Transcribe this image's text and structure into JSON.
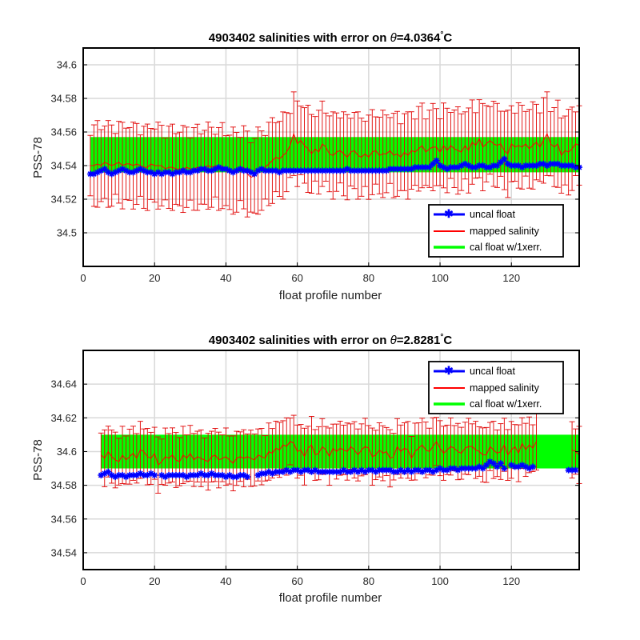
{
  "chart_data": [
    {
      "type": "line",
      "title_prefix": "4903402 salinities with error on ",
      "title_theta": "θ",
      "title_value": "=4.0364",
      "title_degree": "°",
      "title_unit": "C",
      "xlabel": "float profile number",
      "ylabel": "PSS-78",
      "xlim": [
        0,
        139
      ],
      "ylim": [
        34.48,
        34.61
      ],
      "xticks": [
        0,
        20,
        40,
        60,
        80,
        100,
        120
      ],
      "yticks": [
        "34.5",
        "34.52",
        "34.54",
        "34.56",
        "34.58",
        "34.6"
      ],
      "grid": true,
      "legend_position": "bottom-right",
      "legend": [
        "uncal float",
        "mapped salinity",
        "cal float w/1xerr."
      ],
      "series": [
        {
          "name": "uncal float",
          "color": "#0000ff",
          "x_start": 2,
          "x_end": 139,
          "values": [
            34.535,
            34.535,
            34.536,
            34.537,
            34.538,
            34.536,
            34.535,
            34.536,
            34.537,
            34.538,
            34.537,
            34.536,
            34.536,
            34.537,
            34.538,
            34.537,
            34.536,
            34.536,
            34.535,
            34.536,
            34.535,
            34.536,
            34.536,
            34.535,
            34.536,
            34.536,
            34.537,
            34.536,
            34.536,
            34.537,
            34.537,
            34.538,
            34.538,
            34.537,
            34.537,
            34.538,
            34.539,
            34.538,
            34.538,
            34.537,
            34.536,
            34.537,
            34.538,
            34.537,
            34.537,
            34.536,
            34.535,
            34.537,
            34.538,
            34.537,
            34.537,
            34.537,
            34.537,
            34.536,
            34.537,
            34.537,
            34.537,
            34.537,
            34.537,
            34.537,
            34.537,
            34.537,
            34.537,
            34.537,
            34.537,
            34.537,
            34.537,
            34.537,
            34.537,
            34.537,
            34.537,
            34.537,
            34.538,
            34.537,
            34.537,
            34.537,
            34.537,
            34.537,
            34.537,
            34.537,
            34.537,
            34.537,
            34.537,
            34.537,
            34.538,
            34.538,
            34.538,
            34.538,
            34.538,
            34.538,
            34.538,
            34.539,
            34.539,
            34.539,
            34.539,
            34.539,
            34.541,
            34.543,
            34.54,
            34.539,
            34.538,
            34.539,
            34.539,
            34.539,
            34.54,
            34.541,
            34.54,
            34.539,
            34.539,
            34.54,
            34.54,
            34.539,
            34.539,
            34.54,
            34.54,
            34.542,
            34.544,
            34.541,
            34.54,
            34.54,
            34.54,
            34.539,
            34.54,
            34.54,
            34.54,
            34.54,
            34.541,
            34.541,
            34.54,
            34.541,
            34.541,
            34.541,
            34.54,
            34.54,
            34.54,
            34.54,
            34.539,
            34.539
          ]
        },
        {
          "name": "mapped salinity",
          "color": "#ff0000",
          "x_start": 2,
          "x_end": 139,
          "values": [
            34.54,
            34.54,
            34.541,
            34.54,
            34.542,
            34.541,
            34.54,
            34.541,
            34.542,
            34.54,
            34.541,
            34.541,
            34.54,
            34.541,
            34.54,
            34.539,
            34.539,
            34.541,
            34.54,
            34.54,
            34.54,
            34.538,
            34.539,
            34.539,
            34.538,
            34.538,
            34.538,
            34.539,
            34.538,
            34.538,
            34.539,
            34.538,
            34.539,
            34.54,
            34.539,
            34.54,
            34.538,
            34.54,
            34.537,
            34.536,
            34.537,
            34.536,
            34.538,
            34.539,
            34.535,
            34.533,
            34.534,
            34.537,
            34.537,
            34.539,
            34.541,
            34.543,
            34.545,
            34.544,
            34.546,
            34.548,
            34.552,
            34.559,
            34.553,
            34.555,
            34.552,
            34.55,
            34.547,
            34.55,
            34.548,
            34.553,
            34.551,
            34.547,
            34.546,
            34.548,
            34.549,
            34.547,
            34.545,
            34.548,
            34.549,
            34.546,
            34.545,
            34.547,
            34.545,
            34.548,
            34.549,
            34.546,
            34.547,
            34.547,
            34.549,
            34.546,
            34.547,
            34.545,
            34.548,
            34.546,
            34.549,
            34.548,
            34.55,
            34.552,
            34.548,
            34.55,
            34.551,
            34.551,
            34.548,
            34.552,
            34.549,
            34.552,
            34.55,
            34.549,
            34.548,
            34.552,
            34.549,
            34.554,
            34.552,
            34.556,
            34.551,
            34.553,
            34.555,
            34.553,
            34.552,
            34.553,
            34.549,
            34.547,
            34.553,
            34.551,
            34.552,
            34.551,
            34.553,
            34.55,
            34.552,
            34.554,
            34.551,
            34.555,
            34.559,
            34.553,
            34.551,
            34.553,
            34.546,
            34.549,
            34.548,
            34.55,
            34.553,
            34.552
          ]
        },
        {
          "name": "cal float w/1xerr.",
          "color": "#00ff00",
          "x_start": 2,
          "x_end": 139,
          "lower": 34.536,
          "upper": 34.557
        }
      ]
    },
    {
      "type": "line",
      "title_prefix": "4903402 salinities with error on ",
      "title_theta": "θ",
      "title_value": "=2.8281",
      "title_degree": "°",
      "title_unit": "C",
      "xlabel": "float profile number",
      "ylabel": "PSS-78",
      "xlim": [
        0,
        139
      ],
      "ylim": [
        34.53,
        34.66
      ],
      "xticks": [
        0,
        20,
        40,
        60,
        80,
        100,
        120
      ],
      "yticks": [
        "34.54",
        "34.56",
        "34.58",
        "34.6",
        "34.62",
        "34.64"
      ],
      "grid": true,
      "legend_position": "top-right",
      "legend": [
        "uncal float",
        "mapped salinity",
        "cal float w/1xerr."
      ],
      "series": [
        {
          "name": "uncal float",
          "color": "#0000ff",
          "x_start": 5,
          "x_end": 139,
          "values": [
            34.586,
            34.587,
            34.588,
            34.586,
            34.585,
            34.586,
            34.586,
            34.585,
            34.586,
            34.586,
            34.586,
            34.587,
            34.586,
            34.586,
            34.587,
            34.586,
            null,
            34.586,
            34.585,
            34.586,
            34.586,
            34.586,
            34.586,
            34.586,
            34.585,
            34.586,
            34.586,
            34.586,
            34.587,
            34.586,
            34.586,
            34.587,
            34.586,
            34.586,
            34.586,
            34.585,
            34.586,
            34.585,
            34.585,
            34.586,
            34.586,
            34.585,
            null,
            null,
            34.586,
            34.587,
            34.587,
            34.588,
            34.587,
            34.588,
            34.588,
            34.588,
            34.589,
            34.588,
            34.589,
            34.589,
            34.588,
            34.589,
            34.589,
            34.588,
            34.589,
            34.588,
            34.588,
            34.588,
            34.588,
            34.588,
            34.588,
            34.588,
            34.589,
            34.588,
            34.588,
            34.589,
            34.588,
            34.589,
            34.588,
            34.589,
            34.589,
            34.588,
            34.589,
            34.589,
            34.589,
            34.589,
            34.588,
            34.588,
            34.589,
            34.588,
            34.589,
            34.588,
            34.589,
            34.589,
            34.588,
            34.589,
            34.589,
            34.588,
            34.589,
            34.59,
            34.589,
            34.589,
            34.59,
            34.59,
            34.589,
            34.59,
            34.59,
            34.59,
            34.59,
            34.59,
            34.591,
            34.59,
            34.592,
            34.594,
            34.593,
            34.591,
            34.593,
            34.59,
            null,
            34.592,
            34.591,
            34.591,
            34.592,
            34.591,
            34.59,
            34.591,
            null,
            null,
            null,
            null,
            null,
            null,
            null,
            null,
            null,
            34.589,
            34.589,
            34.589
          ]
        },
        {
          "name": "mapped salinity",
          "color": "#ff0000",
          "x_start": 5,
          "x_end": 139,
          "values": [
            34.598,
            34.596,
            34.6,
            34.597,
            34.595,
            34.594,
            34.598,
            34.595,
            34.597,
            34.599,
            34.596,
            34.601,
            34.6,
            34.597,
            34.596,
            34.599,
            34.592,
            34.594,
            34.597,
            34.596,
            34.598,
            34.595,
            34.594,
            34.598,
            34.596,
            34.599,
            34.595,
            34.597,
            34.596,
            34.595,
            34.594,
            34.597,
            34.598,
            34.595,
            34.596,
            34.597,
            34.595,
            34.593,
            34.596,
            34.597,
            34.596,
            34.597,
            34.596,
            34.595,
            34.598,
            34.597,
            34.596,
            34.6,
            34.599,
            34.602,
            34.601,
            34.604,
            34.603,
            34.606,
            34.605,
            34.6,
            34.601,
            34.597,
            34.602,
            34.604,
            34.598,
            34.599,
            34.603,
            34.601,
            34.597,
            34.602,
            34.6,
            34.602,
            34.601,
            34.6,
            34.603,
            34.601,
            34.598,
            34.601,
            34.603,
            34.602,
            34.597,
            34.598,
            34.601,
            34.599,
            34.6,
            34.596,
            34.597,
            34.603,
            34.6,
            34.602,
            34.601,
            34.596,
            34.6,
            34.602,
            34.604,
            34.601,
            34.6,
            34.603,
            34.606,
            34.602,
            34.599,
            34.601,
            34.603,
            34.602,
            34.6,
            34.599,
            34.602,
            34.603,
            34.603,
            34.601,
            34.6,
            34.598,
            34.598,
            34.603,
            34.601,
            34.599,
            34.6,
            34.604,
            34.598,
            34.601,
            34.603,
            34.599,
            34.605,
            34.601,
            34.604,
            34.602,
            34.606,
            null,
            null,
            null,
            null,
            null,
            null,
            null,
            null,
            null,
            34.601,
            34.6,
            34.598
          ]
        },
        {
          "name": "cal float w/1xerr.",
          "color": "#00ff00",
          "x_start": 5,
          "x_end": 139,
          "lower": 34.59,
          "upper": 34.61
        }
      ]
    }
  ]
}
